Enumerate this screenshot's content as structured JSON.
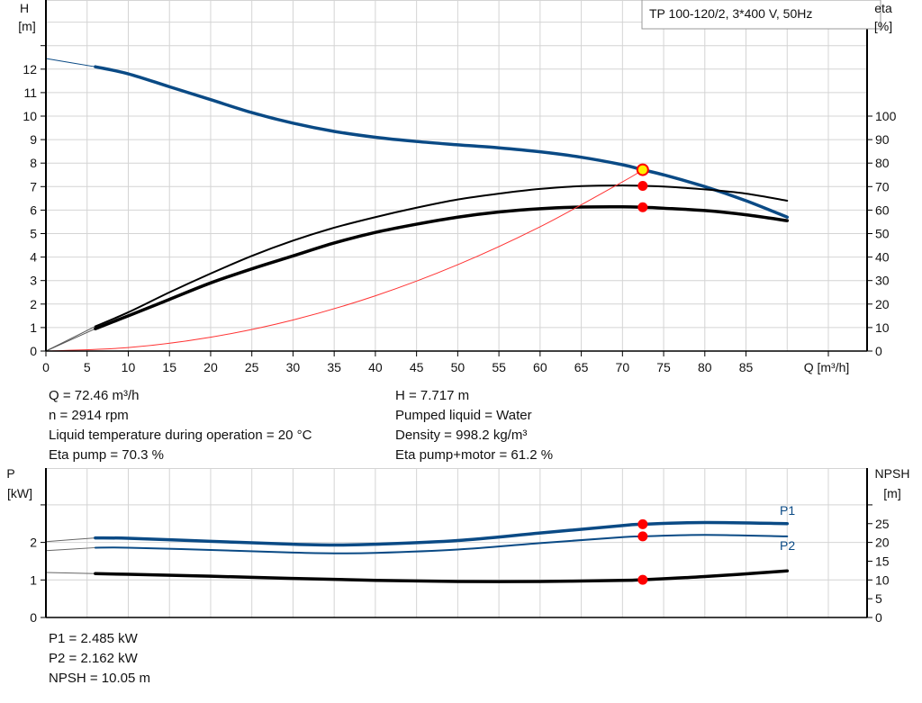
{
  "colors": {
    "head": "#0a4a85",
    "power": "#0a4a85",
    "eta": "#000000",
    "system": "#ff3333",
    "op_point": "#ff0000",
    "op_point_head": "#ffee00",
    "grid": "#d4d4d4"
  },
  "chart_data": [
    {
      "type": "line",
      "title": "TP 100-120/2, 3*400 V, 50Hz",
      "xlabel": "Q [m³/h]",
      "ylabel_left": {
        "name": "H",
        "unit": "[m]"
      },
      "ylabel_right": {
        "name": "eta",
        "unit": "[%]"
      },
      "xlim": [
        0,
        100
      ],
      "ylim_left": [
        0,
        15
      ],
      "ylim_right": [
        0,
        150
      ],
      "x_ticks": [
        "0",
        "5",
        "10",
        "15",
        "20",
        "25",
        "30",
        "35",
        "40",
        "45",
        "50",
        "55",
        "60",
        "65",
        "70",
        "75",
        "80",
        "85"
      ],
      "y_ticks_left": [
        "0",
        "1",
        "2",
        "3",
        "4",
        "5",
        "6",
        "7",
        "8",
        "9",
        "10",
        "11",
        "12"
      ],
      "y_ticks_right": [
        "0",
        "10",
        "20",
        "30",
        "40",
        "50",
        "60",
        "70",
        "80",
        "90",
        "100"
      ],
      "grid": true,
      "legend": "top-right",
      "series": [
        {
          "key": "head",
          "axis": "left",
          "x": [
            0,
            6,
            10,
            15,
            20,
            25,
            30,
            35,
            40,
            45,
            50,
            55,
            60,
            65,
            70,
            72.46,
            75,
            80,
            85,
            90
          ],
          "y": [
            12.45,
            12.1,
            11.8,
            11.25,
            10.7,
            10.15,
            9.7,
            9.35,
            9.1,
            8.92,
            8.78,
            8.65,
            8.48,
            8.25,
            7.93,
            7.717,
            7.5,
            7.0,
            6.4,
            5.7
          ]
        },
        {
          "key": "eta_pump",
          "axis": "right",
          "x": [
            6,
            10,
            15,
            20,
            25,
            30,
            35,
            40,
            45,
            50,
            55,
            60,
            65,
            70,
            72.46,
            75,
            80,
            85,
            90
          ],
          "y": [
            10.5,
            16.5,
            25,
            33,
            40.5,
            47,
            52.5,
            57,
            61,
            64.5,
            67,
            69,
            70.2,
            70.5,
            70.3,
            70,
            68.8,
            67,
            64
          ]
        },
        {
          "key": "eta_pump_motor",
          "axis": "right",
          "x": [
            6,
            10,
            15,
            20,
            25,
            30,
            35,
            40,
            45,
            50,
            55,
            60,
            65,
            70,
            72.46,
            75,
            80,
            85,
            90
          ],
          "y": [
            9.5,
            15,
            22,
            29,
            35,
            40.5,
            46,
            50.5,
            54,
            57,
            59.2,
            60.6,
            61.3,
            61.4,
            61.2,
            60.8,
            59.8,
            58,
            55.5
          ]
        },
        {
          "key": "system",
          "axis": "left",
          "x": [
            0,
            10,
            20,
            30,
            40,
            50,
            60,
            70,
            72.46
          ],
          "y": [
            0,
            0.147,
            0.588,
            1.323,
            2.352,
            3.675,
            5.291,
            7.202,
            7.717
          ]
        }
      ],
      "operating_point": {
        "Q": 72.46,
        "H": 7.717,
        "eta_pump": 70.3,
        "eta_pump_motor": 61.2
      }
    },
    {
      "type": "line",
      "xlim": [
        0,
        100
      ],
      "ylim_left": [
        0,
        4
      ],
      "ylim_right": [
        0,
        40
      ],
      "ylabel_left": {
        "name": "P",
        "unit": "[kW]"
      },
      "ylabel_right": {
        "name": "NPSH",
        "unit": "[m]"
      },
      "y_ticks_left": [
        "0",
        "1",
        "2"
      ],
      "y_ticks_right": [
        "0",
        "5",
        "10",
        "15",
        "20",
        "25"
      ],
      "grid": true,
      "series": [
        {
          "key": "p1",
          "name": "P1",
          "axis": "left",
          "x": [
            0,
            6,
            10,
            20,
            30,
            35,
            40,
            50,
            60,
            70,
            72.46,
            80,
            90
          ],
          "y": [
            2.02,
            2.12,
            2.11,
            2.03,
            1.95,
            1.93,
            1.95,
            2.05,
            2.25,
            2.45,
            2.485,
            2.53,
            2.5
          ]
        },
        {
          "key": "p2",
          "name": "P2",
          "axis": "left",
          "x": [
            0,
            6,
            10,
            20,
            30,
            35,
            40,
            50,
            60,
            70,
            72.46,
            80,
            90
          ],
          "y": [
            1.78,
            1.86,
            1.86,
            1.8,
            1.73,
            1.71,
            1.72,
            1.81,
            1.98,
            2.14,
            2.162,
            2.2,
            2.16
          ]
        },
        {
          "key": "npsh",
          "axis": "right",
          "x": [
            0,
            6,
            10,
            20,
            30,
            40,
            50,
            60,
            70,
            72.46,
            80,
            90
          ],
          "y": [
            12,
            11.7,
            11.5,
            11,
            10.4,
            9.9,
            9.6,
            9.6,
            9.9,
            10.05,
            10.9,
            12.4
          ]
        }
      ],
      "operating_point": {
        "Q": 72.46,
        "P1": 2.485,
        "P2": 2.162,
        "NPSH": 10.05
      }
    }
  ],
  "info_top": {
    "left": [
      "Q = 72.46 m³/h",
      "n = 2914 rpm",
      "Liquid temperature during operation = 20 °C",
      "Eta pump = 70.3 %"
    ],
    "right": [
      "H = 7.717 m",
      "Pumped liquid = Water",
      "Density = 998.2 kg/m³",
      "Eta pump+motor = 61.2 %"
    ]
  },
  "info_bottom": [
    "P1 = 2.485 kW",
    "P2 = 2.162 kW",
    "NPSH = 10.05 m"
  ]
}
